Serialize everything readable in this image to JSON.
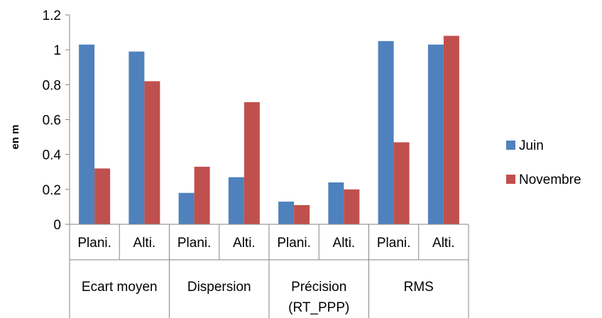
{
  "chart_data": {
    "type": "bar",
    "title": "",
    "xlabel": "",
    "ylabel": "en m",
    "ylim": [
      0,
      1.2
    ],
    "yticks": [
      "0",
      "0.2",
      "0.4",
      "0.6",
      "0.8",
      "1",
      "1.2"
    ],
    "categories": [
      "Plani.",
      "Alti.",
      "Plani.",
      "Alti.",
      "Plani.",
      "Alti.",
      "Plani.",
      "Alti."
    ],
    "groups": [
      {
        "label_lines": [
          "Ecart moyen"
        ]
      },
      {
        "label_lines": [
          "Dispersion"
        ]
      },
      {
        "label_lines": [
          "Précision",
          "(RT_PPP)"
        ]
      },
      {
        "label_lines": [
          "RMS"
        ]
      }
    ],
    "series": [
      {
        "name": "Juin",
        "color": "#4f81bd",
        "values": [
          1.03,
          0.99,
          0.18,
          0.27,
          0.13,
          0.24,
          1.05,
          1.03
        ]
      },
      {
        "name": "Novembre",
        "color": "#c0504d",
        "values": [
          0.32,
          0.82,
          0.33,
          0.7,
          0.11,
          0.2,
          0.47,
          1.08
        ]
      }
    ],
    "grid": false,
    "legend_position": "right"
  }
}
